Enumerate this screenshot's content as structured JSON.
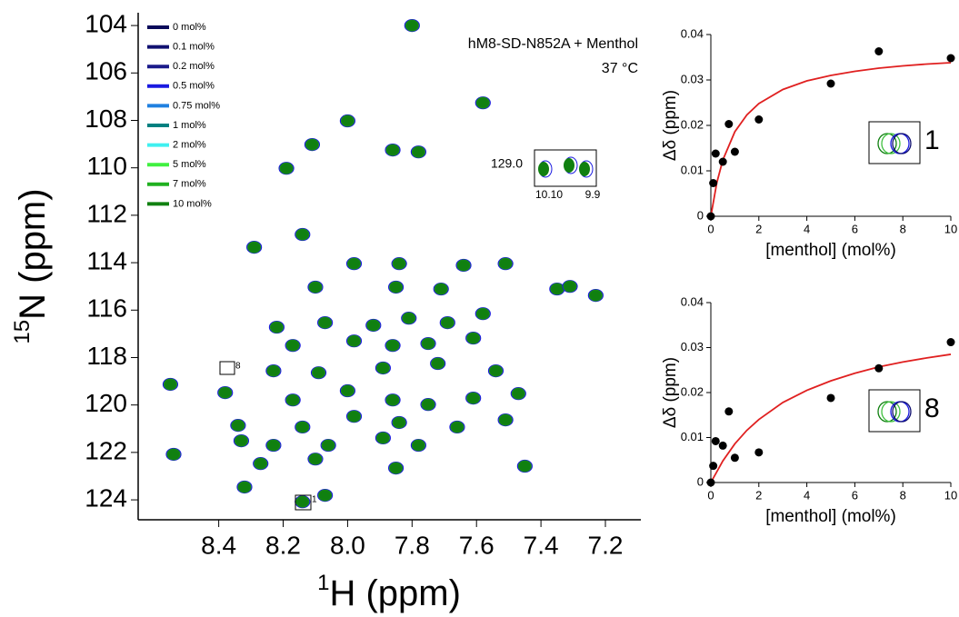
{
  "chart_data": [
    {
      "type": "spectrum",
      "title": "hM8-SD-N852A + Menthol",
      "subtitle": "37 °C",
      "xlabel_sup": "1",
      "xlabel": "H (ppm)",
      "ylabel_sup": "15",
      "ylabel": "N (ppm)",
      "xlim": [
        8.65,
        7.09
      ],
      "ylim": [
        124.84,
        103.46
      ],
      "xticks": [
        8.4,
        8.2,
        {
          "value": 8.0,
          "label": "8.0"
        },
        7.8,
        7.6,
        7.4,
        7.2
      ],
      "yticks": [
        104,
        106,
        108,
        110,
        112,
        114,
        116,
        118,
        120,
        122,
        124
      ],
      "legend": [
        {
          "label": "0 mol%",
          "color": "#0a0a5a"
        },
        {
          "label": "0.1 mol%",
          "color": "#101070"
        },
        {
          "label": "0.2 mol%",
          "color": "#1a1a8a"
        },
        {
          "label": "0.5 mol%",
          "color": "#1a1ae0"
        },
        {
          "label": "0.75 mol%",
          "color": "#2080e0"
        },
        {
          "label": "1 mol%",
          "color": "#008080"
        },
        {
          "label": "2 mol%",
          "color": "#40f0f0"
        },
        {
          "label": "5 mol%",
          "color": "#40f040"
        },
        {
          "label": "7 mol%",
          "color": "#20b020"
        },
        {
          "label": "10 mol%",
          "color": "#108010"
        }
      ],
      "x": [
        7.8,
        7.58,
        8.0,
        7.86,
        7.78,
        8.11,
        8.19,
        8.14,
        8.29,
        7.98,
        7.84,
        7.64,
        7.51,
        7.35,
        7.31,
        7.23,
        8.1,
        7.85,
        7.71,
        8.22,
        8.07,
        7.92,
        7.81,
        7.69,
        7.58,
        8.17,
        7.98,
        7.86,
        7.75,
        7.61,
        8.23,
        8.09,
        7.89,
        7.72,
        7.54,
        8.38,
        8.55,
        8.17,
        8.0,
        7.86,
        7.75,
        7.61,
        7.47,
        8.14,
        7.98,
        7.84,
        7.66,
        7.51,
        8.34,
        8.33,
        8.06,
        7.89,
        7.78,
        8.54,
        8.23,
        8.1,
        7.85,
        7.45,
        8.32,
        8.14,
        8.07,
        8.27
      ],
      "y": [
        104.0,
        107.26,
        108.02,
        109.25,
        109.33,
        109.02,
        110.02,
        112.81,
        113.35,
        114.04,
        114.04,
        114.11,
        114.04,
        115.11,
        115.0,
        115.38,
        115.03,
        115.03,
        115.11,
        116.72,
        116.53,
        116.64,
        116.34,
        116.53,
        116.15,
        117.49,
        117.3,
        117.49,
        117.41,
        117.18,
        118.56,
        118.64,
        118.44,
        118.25,
        118.56,
        119.48,
        119.13,
        119.79,
        119.4,
        119.79,
        119.98,
        119.71,
        119.52,
        120.93,
        120.48,
        120.74,
        120.93,
        120.63,
        120.86,
        121.51,
        121.7,
        121.39,
        121.7,
        122.08,
        121.7,
        122.28,
        122.66,
        122.58,
        123.46,
        124.08,
        123.81,
        122.47
      ],
      "inset": {
        "ytick": "129.0",
        "xticks": [
          "10.10",
          "9.9"
        ]
      },
      "annotations": [
        "8",
        "1"
      ]
    },
    {
      "type": "scatter",
      "xlabel": "[menthol] (mol%)",
      "ylabel": "Δδ (ppm)",
      "label": "1",
      "color": "#000000",
      "xlim": [
        0,
        10
      ],
      "ylim": [
        0,
        0.04
      ],
      "xticks": [
        0,
        2,
        4,
        6,
        8,
        10
      ],
      "yticks": [
        0,
        0.01,
        0.02,
        0.03,
        0.04
      ],
      "x": [
        0,
        0.1,
        0.2,
        0.5,
        0.75,
        1,
        2,
        5,
        7,
        10
      ],
      "values": [
        0,
        0.0073,
        0.0138,
        0.012,
        0.0203,
        0.0142,
        0.0213,
        0.0292,
        0.0363,
        0.0348
      ],
      "fit": {
        "color": "#e02020",
        "x": [
          0,
          0.25,
          0.5,
          1,
          1.5,
          2,
          3,
          4,
          5,
          6,
          7,
          8,
          9,
          10
        ],
        "y": [
          0,
          0.0074,
          0.0124,
          0.0186,
          0.0223,
          0.0248,
          0.0279,
          0.0298,
          0.031,
          0.0319,
          0.0326,
          0.0331,
          0.0335,
          0.0338
        ]
      }
    },
    {
      "type": "scatter",
      "xlabel": "[menthol] (mol%)",
      "ylabel": "Δδ (ppm)",
      "label": "8",
      "color": "#000000",
      "xlim": [
        0,
        10
      ],
      "ylim": [
        0,
        0.04
      ],
      "xticks": [
        0,
        2,
        4,
        6,
        8,
        10
      ],
      "yticks": [
        0,
        0.01,
        0.02,
        0.03,
        0.04
      ],
      "x": [
        0,
        0.1,
        0.2,
        0.5,
        0.75,
        1,
        2,
        5,
        7,
        10
      ],
      "values": [
        0,
        0.0037,
        0.0092,
        0.0082,
        0.0158,
        0.0055,
        0.0067,
        0.0188,
        0.0254,
        0.0312
      ],
      "fit": {
        "color": "#e02020",
        "x": [
          0,
          0.5,
          1,
          1.5,
          2,
          3,
          4,
          5,
          6,
          7,
          8,
          9,
          10
        ],
        "y": [
          0,
          0.0048,
          0.0086,
          0.0116,
          0.014,
          0.0178,
          0.0205,
          0.0226,
          0.0243,
          0.0257,
          0.0268,
          0.0277,
          0.0285
        ]
      }
    }
  ]
}
